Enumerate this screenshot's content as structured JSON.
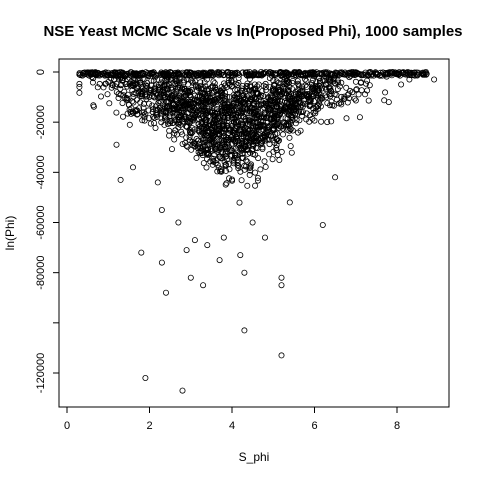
{
  "chart_data": {
    "type": "scatter",
    "title": "NSE Yeast MCMC Scale vs ln(Proposed Phi), 1000 samples",
    "xlabel": "S_phi",
    "ylabel": "ln(Phi)",
    "xlim": [
      0,
      9.1
    ],
    "ylim": [
      -130000,
      2000
    ],
    "xticks": [
      0,
      2,
      4,
      6,
      8
    ],
    "xtick_labels": [
      "0",
      "2",
      "4",
      "6",
      "8"
    ],
    "yticks": [
      0,
      -20000,
      -40000,
      -60000,
      -80000,
      -100000,
      -120000
    ],
    "ytick_labels": [
      "0",
      "-20000",
      "-40000",
      "-60000",
      "-80000",
      "",
      "-120000"
    ],
    "grid": false,
    "legend": "none",
    "marker": "open-circle",
    "color": "#000000",
    "points": [
      [
        0.3,
        -1000
      ],
      [
        0.6,
        -2000
      ],
      [
        1.0,
        -4000
      ],
      [
        1.3,
        -9000
      ],
      [
        1.5,
        -13000
      ],
      [
        1.7,
        -17000
      ],
      [
        1.2,
        -29000
      ],
      [
        1.3,
        -43000
      ],
      [
        1.6,
        -38000
      ],
      [
        1.8,
        -72000
      ],
      [
        1.9,
        -122000
      ],
      [
        2.2,
        -44000
      ],
      [
        2.3,
        -55000
      ],
      [
        2.3,
        -76000
      ],
      [
        2.4,
        -88000
      ],
      [
        2.7,
        -60000
      ],
      [
        2.8,
        -127000
      ],
      [
        2.9,
        -71000
      ],
      [
        3.0,
        -82000
      ],
      [
        3.1,
        -67000
      ],
      [
        3.3,
        -85000
      ],
      [
        3.4,
        -69000
      ],
      [
        3.7,
        -75000
      ],
      [
        3.8,
        -66000
      ],
      [
        4.2,
        -73000
      ],
      [
        4.3,
        -80000
      ],
      [
        4.3,
        -103000
      ],
      [
        4.5,
        -60000
      ],
      [
        4.8,
        -66000
      ],
      [
        5.2,
        -82000
      ],
      [
        5.2,
        -85000
      ],
      [
        5.2,
        -113000
      ],
      [
        5.4,
        -52000
      ],
      [
        6.2,
        -61000
      ],
      [
        6.5,
        -42000
      ],
      [
        7.1,
        -18000
      ],
      [
        7.8,
        -12000
      ],
      [
        8.1,
        -5000
      ],
      [
        8.3,
        -3000
      ],
      [
        8.5,
        -1000
      ],
      [
        8.7,
        0
      ],
      [
        8.9,
        -3000
      ]
    ]
  }
}
